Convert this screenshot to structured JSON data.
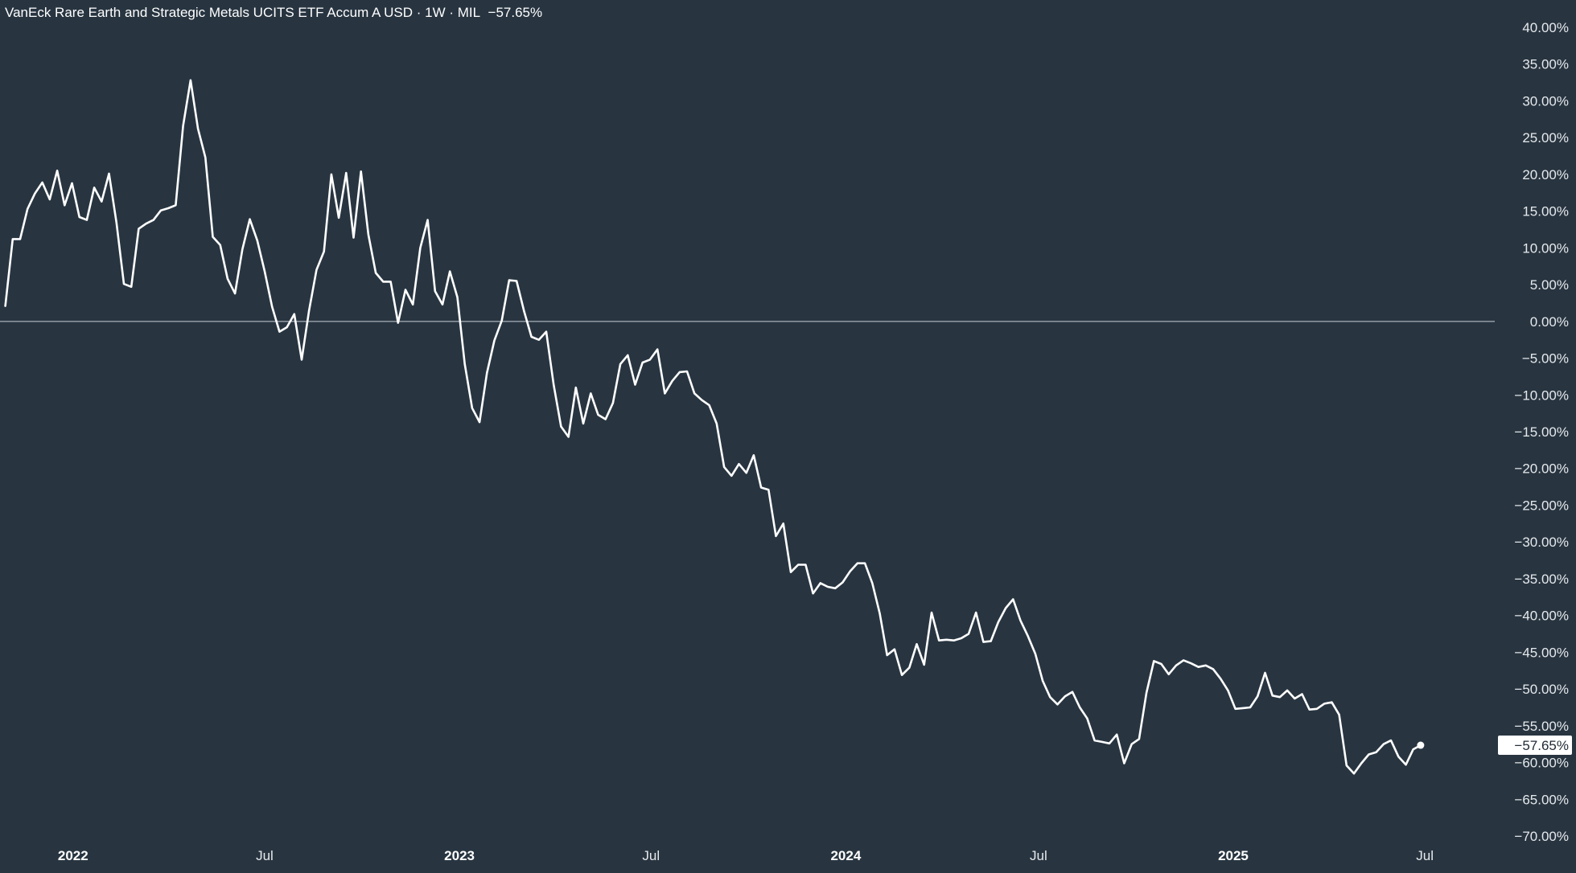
{
  "header": {
    "title": "VanEck Rare Earth and Strategic Metals UCITS ETF Accum A USD · 1W · MIL",
    "change": "−57.65%"
  },
  "colors": {
    "background": "#283541",
    "line": "#ffffff",
    "zero_line": "#c7cdd3",
    "last_label_bg": "#ffffff",
    "last_label_text": "#1f2a35"
  },
  "chart_data": {
    "type": "line",
    "title": "VanEck Rare Earth and Strategic Metals UCITS ETF Accum A USD · 1W · MIL",
    "xlabel": "",
    "ylabel": "",
    "ylim": [
      -70,
      40
    ],
    "xlim": [
      "2021-10-24",
      "2025-09-05"
    ],
    "grid": false,
    "y_ticks": [
      40,
      35,
      30,
      25,
      20,
      15,
      10,
      5,
      0,
      -5,
      -10,
      -15,
      -20,
      -25,
      -30,
      -35,
      -40,
      -45,
      -50,
      -55,
      -60,
      -65,
      -70
    ],
    "y_tick_labels": [
      "40.00%",
      "35.00%",
      "30.00%",
      "25.00%",
      "20.00%",
      "15.00%",
      "10.00%",
      "5.00%",
      "0.00%",
      "−5.00%",
      "−10.00%",
      "−15.00%",
      "−20.00%",
      "−25.00%",
      "−30.00%",
      "−35.00%",
      "−40.00%",
      "−45.00%",
      "−50.00%",
      "−55.00%",
      "−60.00%",
      "−65.00%",
      "−70.00%"
    ],
    "x_ticks": [
      {
        "label": "2022",
        "date": "2022-01-01",
        "bold": true
      },
      {
        "label": "Jul",
        "date": "2022-07-01",
        "bold": false
      },
      {
        "label": "2023",
        "date": "2023-01-01",
        "bold": true
      },
      {
        "label": "Jul",
        "date": "2023-07-01",
        "bold": false
      },
      {
        "label": "2024",
        "date": "2024-01-01",
        "bold": true
      },
      {
        "label": "Jul",
        "date": "2024-07-01",
        "bold": false
      },
      {
        "label": "2025",
        "date": "2025-01-01",
        "bold": true
      },
      {
        "label": "Jul",
        "date": "2025-07-01",
        "bold": false
      }
    ],
    "reference_line": 0,
    "last_value_label": "−57.65%",
    "last_value": -57.65,
    "series": [
      {
        "frequency": "weekly",
        "start_date": "2021-10-29",
        "values": [
          2.1,
          11.2,
          11.2,
          15.3,
          17.4,
          18.9,
          16.6,
          20.5,
          15.8,
          18.8,
          14.2,
          13.8,
          18.2,
          16.3,
          20.1,
          13.5,
          5.1,
          4.7,
          12.6,
          13.3,
          13.8,
          15.1,
          15.4,
          15.8,
          26.6,
          32.8,
          26.2,
          22.3,
          11.5,
          10.4,
          5.8,
          3.8,
          9.8,
          13.9,
          11.0,
          6.8,
          2.0,
          -1.4,
          -0.8,
          1.0,
          -5.2,
          1.5,
          7.0,
          9.5,
          20.0,
          14.1,
          20.2,
          11.4,
          20.4,
          11.8,
          6.6,
          5.4,
          5.4,
          -0.2,
          4.3,
          2.3,
          10.0,
          13.8,
          4.1,
          2.3,
          6.8,
          3.3,
          -5.8,
          -11.8,
          -13.7,
          -7.0,
          -2.6,
          0.1,
          5.6,
          5.5,
          1.4,
          -2.1,
          -2.5,
          -1.4,
          -8.6,
          -14.3,
          -15.7,
          -9.0,
          -13.9,
          -9.8,
          -12.7,
          -13.3,
          -11.1,
          -5.8,
          -4.6,
          -8.6,
          -5.6,
          -5.2,
          -3.8,
          -9.8,
          -8.1,
          -6.9,
          -6.8,
          -9.8,
          -10.7,
          -11.4,
          -13.9,
          -19.8,
          -21.0,
          -19.4,
          -20.6,
          -18.2,
          -22.6,
          -22.9,
          -29.2,
          -27.5,
          -34.1,
          -33.1,
          -33.1,
          -37.0,
          -35.6,
          -36.1,
          -36.3,
          -35.5,
          -34.0,
          -32.9,
          -32.9,
          -35.6,
          -39.7,
          -45.4,
          -44.6,
          -48.1,
          -47.1,
          -43.9,
          -46.7,
          -39.6,
          -43.4,
          -43.3,
          -43.4,
          -43.1,
          -42.5,
          -39.6,
          -43.6,
          -43.5,
          -40.9,
          -39.0,
          -37.8,
          -40.7,
          -42.8,
          -45.2,
          -48.9,
          -51.1,
          -52.1,
          -51.0,
          -50.4,
          -52.5,
          -54.0,
          -57.0,
          -57.2,
          -57.4,
          -56.2,
          -60.1,
          -57.5,
          -56.8,
          -50.5,
          -46.2,
          -46.6,
          -48.0,
          -46.8,
          -46.1,
          -46.5,
          -47.0,
          -46.8,
          -47.3,
          -48.6,
          -50.2,
          -52.7,
          -52.6,
          -52.5,
          -51.0,
          -47.8,
          -50.9,
          -51.1,
          -50.2,
          -51.3,
          -50.7,
          -52.8,
          -52.7,
          -52.0,
          -51.8,
          -53.5,
          -60.4,
          -61.5,
          -60.1,
          -58.9,
          -58.6,
          -57.5,
          -57.0,
          -59.2,
          -60.3,
          -58.2,
          -57.65
        ]
      }
    ]
  }
}
